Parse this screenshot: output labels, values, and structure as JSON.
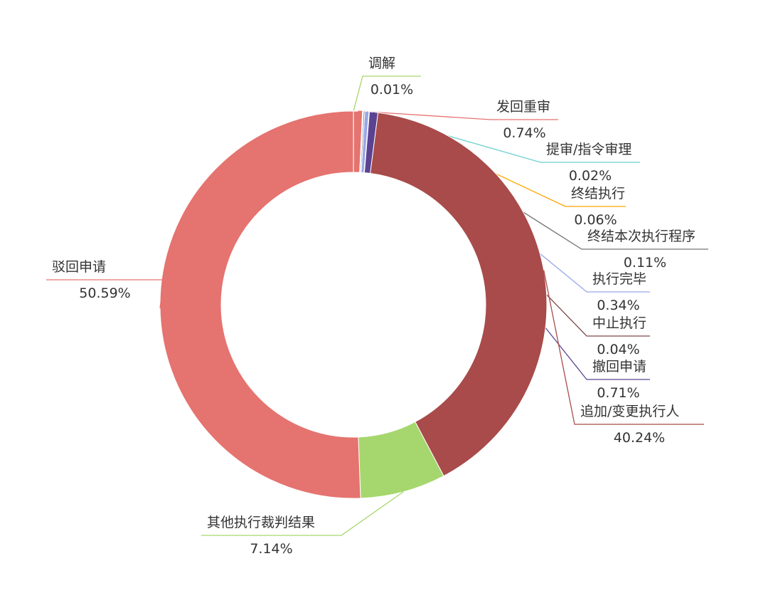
{
  "chart_data": {
    "type": "donut",
    "categories": [
      "调解",
      "发回重审",
      "提审/指令审理",
      "终结执行",
      "终结本次执行程序",
      "执行完毕",
      "中止执行",
      "撤回申请",
      "追加/变更执行人",
      "其他执行裁判结果",
      "驳回申请"
    ],
    "values": [
      0.01,
      0.74,
      0.02,
      0.06,
      0.11,
      0.34,
      0.04,
      0.71,
      40.24,
      7.14,
      50.59
    ],
    "value_labels": [
      "0.01%",
      "0.74%",
      "0.02%",
      "0.06%",
      "0.11%",
      "0.34%",
      "0.04%",
      "0.71%",
      "40.24%",
      "7.14%",
      "50.59%"
    ],
    "colors": [
      "#a6d76e",
      "#e5736f",
      "#6ccfcf",
      "#ffa500",
      "#737373",
      "#99a6e8",
      "#7b4a4a",
      "#5b4391",
      "#a84b4a",
      "#a6d76e",
      "#e5736f"
    ]
  }
}
